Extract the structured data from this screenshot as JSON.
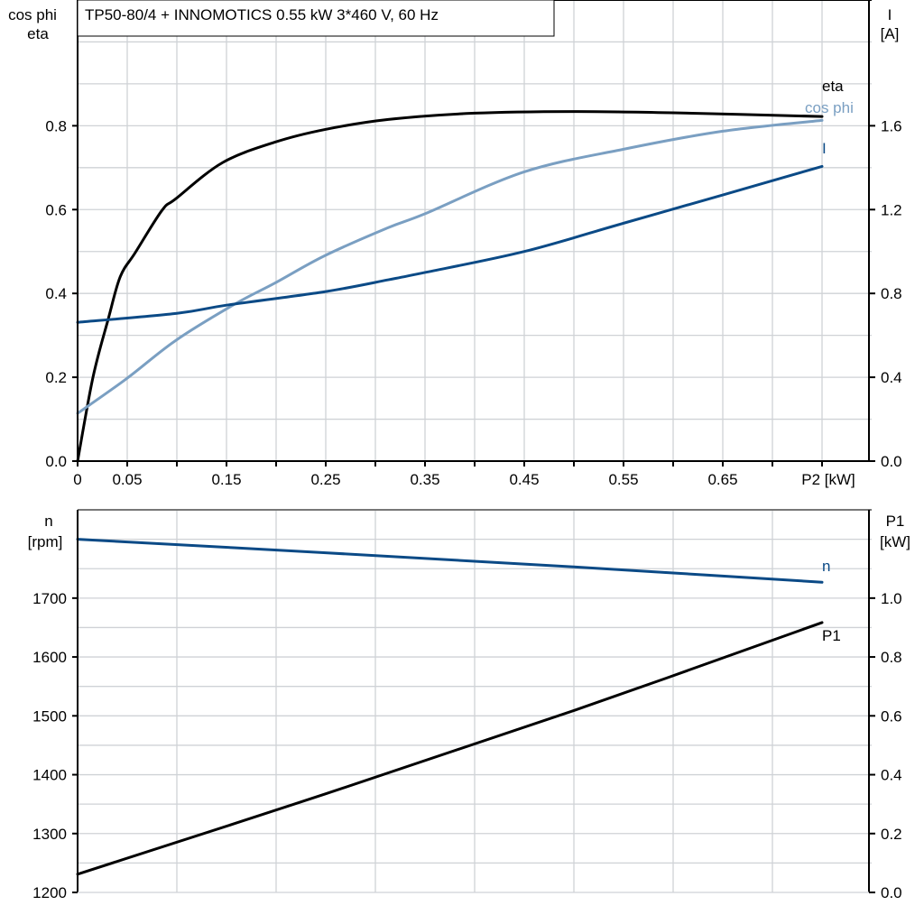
{
  "chart_data": [
    {
      "type": "line",
      "title": "TP50-80/4 + INNOMOTICS   0.55 kW   3*460 V, 60 Hz",
      "xlabel": "P2 [kW]",
      "ylabel_left": [
        "cos phi",
        "eta"
      ],
      "ylabel_right": [
        "I",
        "[A]"
      ],
      "xlim": [
        0,
        0.8
      ],
      "ylim_left": [
        0,
        1.1
      ],
      "ylim_right": [
        0,
        2.2
      ],
      "x_ticks": [
        "0",
        "0.05",
        "0.15",
        "0.25",
        "0.35",
        "0.45",
        "0.55",
        "0.65"
      ],
      "y_ticks_left": [
        "0.0",
        "0.2",
        "0.4",
        "0.6",
        "0.8"
      ],
      "y_ticks_right": [
        "0.0",
        "0.4",
        "0.8",
        "1.2",
        "1.6"
      ],
      "grid": true,
      "series": [
        {
          "name": "eta",
          "axis": "left",
          "color": "#000000",
          "x": [
            0,
            0.0155,
            0.031,
            0.043,
            0.058,
            0.085,
            0.099,
            0.146,
            0.199,
            0.249,
            0.313,
            0.4,
            0.5,
            0.6,
            0.75
          ],
          "y": [
            0,
            0.2,
            0.34,
            0.44,
            0.497,
            0.598,
            0.626,
            0.712,
            0.761,
            0.791,
            0.815,
            0.83,
            0.834,
            0.831,
            0.822
          ]
        },
        {
          "name": "cos phi",
          "axis": "left",
          "color": "#7a9fc2",
          "x": [
            0,
            0.049,
            0.099,
            0.158,
            0.199,
            0.249,
            0.313,
            0.35,
            0.45,
            0.55,
            0.65,
            0.75
          ],
          "y": [
            0.114,
            0.196,
            0.288,
            0.374,
            0.425,
            0.49,
            0.557,
            0.59,
            0.69,
            0.744,
            0.787,
            0.813
          ]
        },
        {
          "name": "I",
          "axis": "right",
          "color": "#0b4a86",
          "x": [
            0,
            0.1,
            0.15,
            0.25,
            0.313,
            0.35,
            0.45,
            0.55,
            0.65,
            0.75
          ],
          "y": [
            0.662,
            0.705,
            0.744,
            0.809,
            0.865,
            0.9,
            1.0,
            1.135,
            1.27,
            1.406
          ]
        }
      ]
    },
    {
      "type": "line",
      "ylabel_left": [
        "n",
        "[rpm]"
      ],
      "ylabel_right": [
        "P1",
        "[kW]"
      ],
      "xlim": [
        0,
        0.8
      ],
      "ylim_left": [
        1200,
        1850
      ],
      "ylim_right": [
        0,
        1.3
      ],
      "y_ticks_left": [
        "1200",
        "1300",
        "1400",
        "1500",
        "1600",
        "1700"
      ],
      "y_ticks_right": [
        "0.0",
        "0.2",
        "0.4",
        "0.6",
        "0.8",
        "1.0"
      ],
      "grid": true,
      "series": [
        {
          "name": "n",
          "axis": "left",
          "color": "#0b4a86",
          "x": [
            0,
            0.25,
            0.5,
            0.75
          ],
          "y": [
            1800,
            1777,
            1753,
            1727
          ]
        },
        {
          "name": "P1",
          "axis": "right",
          "color": "#000000",
          "x": [
            0,
            0.25,
            0.5,
            0.75
          ],
          "y": [
            0.062,
            0.335,
            0.618,
            0.917
          ]
        }
      ]
    }
  ]
}
